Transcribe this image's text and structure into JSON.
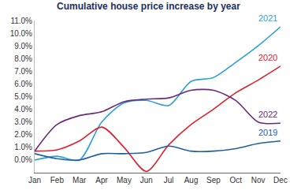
{
  "chart_data": {
    "type": "line",
    "title": "Cumulative house price increase by year",
    "categories": [
      "Jan",
      "Feb",
      "Mar",
      "Apr",
      "May",
      "Jun",
      "Jul",
      "Aug",
      "Sep",
      "Oct",
      "Nov",
      "Dec"
    ],
    "series": [
      {
        "name": "2021",
        "color": "#2a9fd8",
        "values": [
          0.0,
          0.3,
          0.0,
          3.0,
          4.5,
          4.7,
          4.3,
          6.2,
          6.5,
          7.7,
          9.0,
          10.5
        ]
      },
      {
        "name": "2020",
        "color": "#e0202c",
        "values": [
          0.7,
          0.8,
          1.5,
          2.6,
          1.0,
          -0.9,
          1.2,
          2.8,
          4.0,
          5.3,
          6.3,
          7.4
        ]
      },
      {
        "name": "2022",
        "color": "#6b2a7a",
        "values": [
          0.7,
          2.8,
          3.5,
          3.8,
          4.6,
          4.8,
          4.9,
          5.5,
          5.5,
          4.7,
          3.0,
          2.9
        ]
      },
      {
        "name": "2019",
        "color": "#1f5f9e",
        "values": [
          0.5,
          0.1,
          0.0,
          0.5,
          0.5,
          0.6,
          1.1,
          0.7,
          0.7,
          0.9,
          1.3,
          1.5
        ]
      }
    ],
    "ylim": [
      -1,
      11
    ],
    "yticks": [
      {
        "value": 0,
        "label": "0.0%"
      },
      {
        "value": 1,
        "label": "1.0%"
      },
      {
        "value": 2,
        "label": "2.0%"
      },
      {
        "value": 3,
        "label": "3.0%"
      },
      {
        "value": 4,
        "label": "4.0%"
      },
      {
        "value": 5,
        "label": "5.0%"
      },
      {
        "value": 6,
        "label": "6.0%"
      },
      {
        "value": 7,
        "label": "7.0%"
      },
      {
        "value": 8,
        "label": "8.0%"
      },
      {
        "value": 9,
        "label": "9.0%"
      },
      {
        "value": 10,
        "label": "10.0%"
      },
      {
        "value": 11,
        "label": "11.0%"
      }
    ],
    "grid": false
  }
}
